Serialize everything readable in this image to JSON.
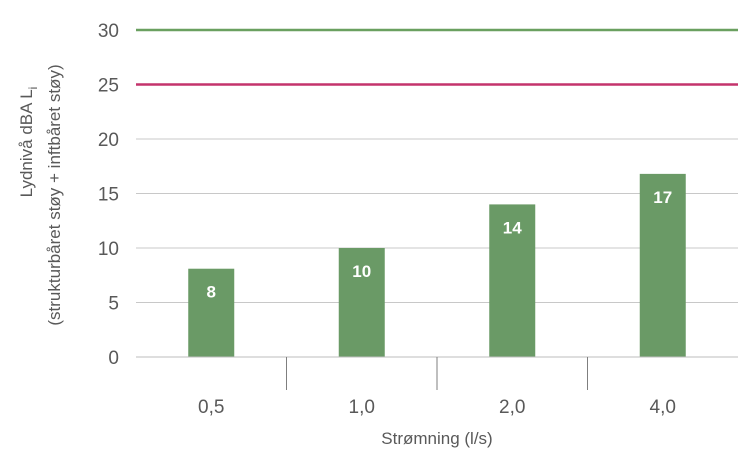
{
  "chart_data": {
    "type": "bar",
    "categories": [
      "0,5",
      "1,0",
      "2,0",
      "4,0"
    ],
    "values": [
      8.1,
      10,
      14,
      16.8
    ],
    "data_labels": [
      "8",
      "10",
      "14",
      "17"
    ],
    "bar_color": "#6a9a66",
    "ylim": [
      0,
      30
    ],
    "yticks": [
      0,
      5,
      10,
      15,
      20,
      25,
      30
    ],
    "ytick_labels": [
      "0",
      "5",
      "10",
      "15",
      "20",
      "25",
      "30"
    ],
    "xlabel": "Strømning (l/s)",
    "ylabel_line1": "Lydnivå dBA L",
    "ylabel_subscript": "i",
    "ylabel_line2": "(strukturbåret støy + inftbåret støy)",
    "grid": true,
    "grid_color": "#c8c8c8",
    "reference_lines": [
      {
        "value": 30,
        "color": "#6aa060"
      },
      {
        "value": 25,
        "color": "#c4336c"
      }
    ]
  }
}
